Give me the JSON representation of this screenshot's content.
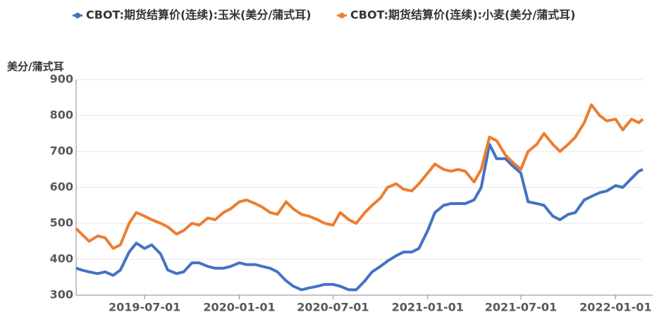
{
  "chart_data": {
    "type": "line",
    "y_label": "美分/蒲式耳",
    "x": [
      "2019-02-18",
      "2019-03-01",
      "2019-03-15",
      "2019-04-01",
      "2019-04-15",
      "2019-05-01",
      "2019-05-15",
      "2019-06-01",
      "2019-06-15",
      "2019-07-01",
      "2019-07-15",
      "2019-08-01",
      "2019-08-15",
      "2019-09-01",
      "2019-09-15",
      "2019-10-01",
      "2019-10-15",
      "2019-11-01",
      "2019-11-15",
      "2019-12-01",
      "2019-12-15",
      "2020-01-01",
      "2020-01-15",
      "2020-02-01",
      "2020-02-15",
      "2020-03-01",
      "2020-03-15",
      "2020-04-01",
      "2020-04-15",
      "2020-05-01",
      "2020-05-15",
      "2020-06-01",
      "2020-06-15",
      "2020-07-01",
      "2020-07-15",
      "2020-08-01",
      "2020-08-15",
      "2020-09-01",
      "2020-09-15",
      "2020-10-01",
      "2020-10-15",
      "2020-11-01",
      "2020-11-15",
      "2020-12-01",
      "2020-12-15",
      "2021-01-01",
      "2021-01-15",
      "2021-02-01",
      "2021-02-15",
      "2021-03-01",
      "2021-03-15",
      "2021-04-01",
      "2021-04-15",
      "2021-05-01",
      "2021-05-15",
      "2021-06-01",
      "2021-06-15",
      "2021-07-01",
      "2021-07-15",
      "2021-08-01",
      "2021-08-15",
      "2021-09-01",
      "2021-09-15",
      "2021-10-01",
      "2021-10-15",
      "2021-11-01",
      "2021-11-15",
      "2021-12-01",
      "2021-12-15",
      "2022-01-01",
      "2022-01-15",
      "2022-02-01",
      "2022-02-15",
      "2022-02-23"
    ],
    "series": [
      {
        "name": "CBOT:期货结算价(连续):玉米(美分/蒲式耳)",
        "color": "#4472c4",
        "values": [
          375,
          370,
          365,
          360,
          365,
          355,
          370,
          420,
          445,
          430,
          440,
          415,
          370,
          360,
          365,
          390,
          390,
          380,
          375,
          375,
          380,
          390,
          385,
          385,
          380,
          375,
          365,
          340,
          325,
          315,
          320,
          325,
          330,
          330,
          325,
          315,
          315,
          340,
          365,
          380,
          395,
          410,
          420,
          420,
          430,
          480,
          530,
          550,
          555,
          555,
          555,
          565,
          600,
          720,
          680,
          680,
          660,
          640,
          560,
          555,
          550,
          520,
          510,
          525,
          530,
          565,
          575,
          585,
          590,
          605,
          600,
          625,
          645,
          650
        ]
      },
      {
        "name": "CBOT:期货结算价(连续):小麦(美分/蒲式耳)",
        "color": "#ed7d31",
        "values": [
          485,
          470,
          450,
          465,
          460,
          430,
          440,
          500,
          530,
          520,
          510,
          500,
          490,
          470,
          480,
          500,
          495,
          515,
          510,
          530,
          540,
          560,
          565,
          555,
          545,
          530,
          525,
          560,
          540,
          525,
          520,
          510,
          500,
          495,
          530,
          510,
          500,
          530,
          550,
          570,
          600,
          610,
          595,
          590,
          610,
          640,
          665,
          650,
          645,
          650,
          645,
          615,
          650,
          740,
          730,
          690,
          670,
          650,
          700,
          720,
          750,
          720,
          700,
          720,
          740,
          780,
          830,
          800,
          785,
          790,
          760,
          790,
          780,
          790
        ]
      }
    ],
    "xlim": [
      "2019-02-18",
      "2022-02-23"
    ],
    "xticks": [
      "2019-07-01",
      "2020-01-01",
      "2020-07-01",
      "2021-01-01",
      "2021-07-01",
      "2022-01-01"
    ],
    "ylim": [
      300,
      900
    ],
    "yticks": [
      300,
      400,
      500,
      600,
      700,
      800,
      900
    ],
    "grid": true,
    "legend": "top"
  }
}
